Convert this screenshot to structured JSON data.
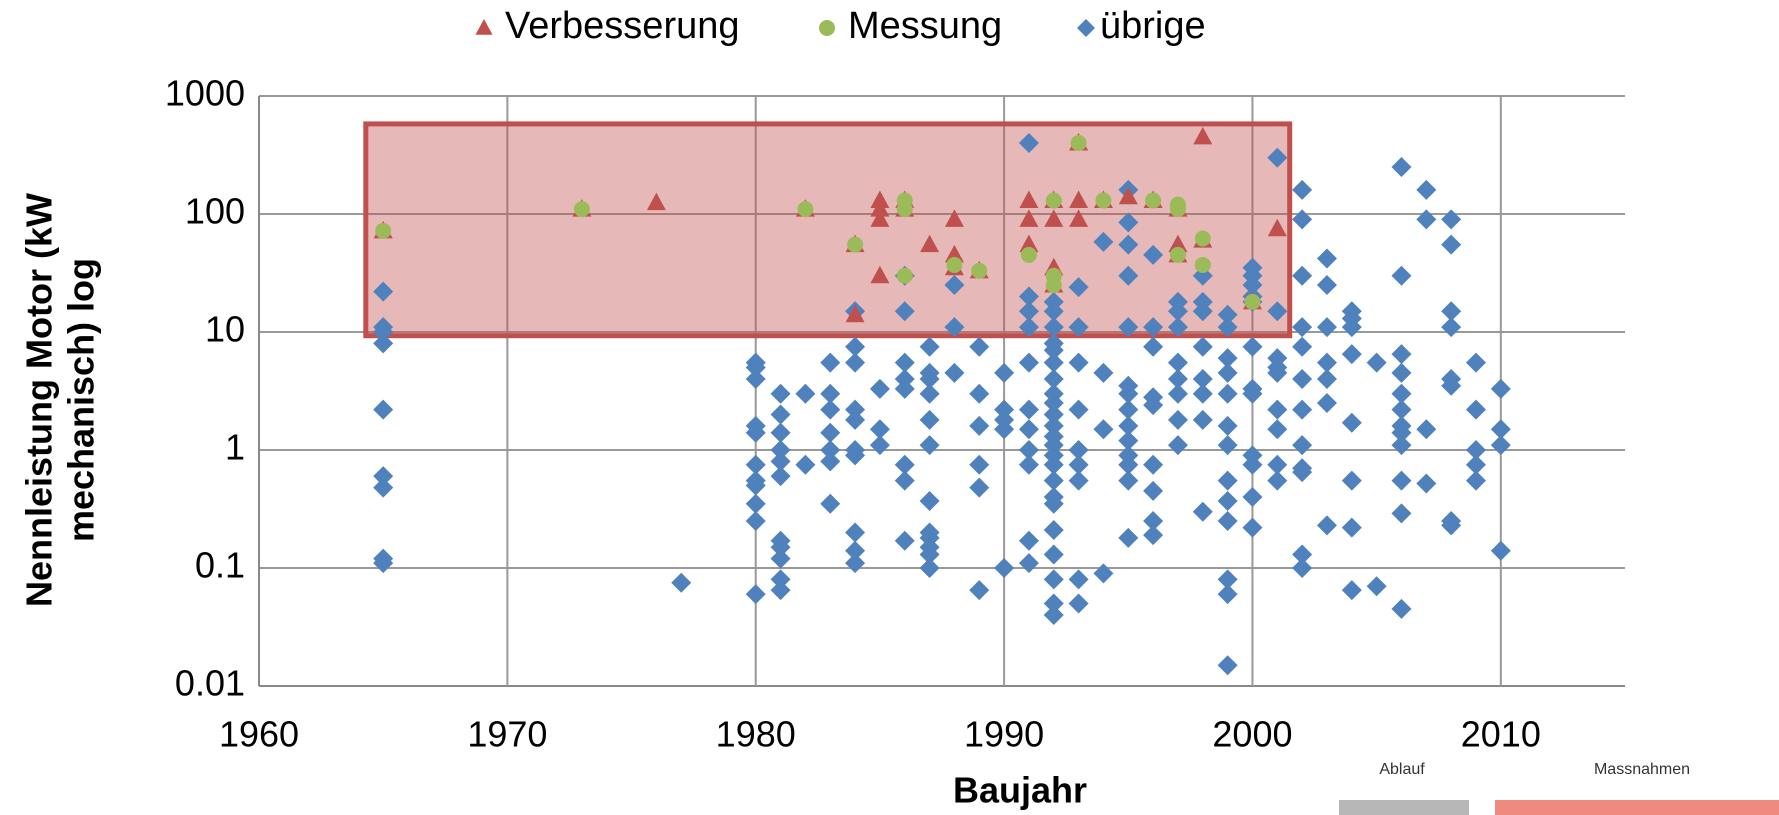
{
  "chart_data": {
    "type": "scatter",
    "x_label": "Baujahr",
    "y_label_lines": [
      "Nennleistung Motor (kW",
      "mechanisch) log"
    ],
    "log_y": true,
    "grid": true,
    "legend": "top",
    "xlim": [
      1960,
      2015
    ],
    "xticks": [
      1960,
      1970,
      1980,
      1990,
      2000,
      2010
    ],
    "ylim": [
      0.01,
      1000
    ],
    "yticks": [
      0.01,
      0.1,
      1,
      10,
      100,
      1000
    ],
    "shaded_region": {
      "x": [
        1964.3,
        2001.5
      ],
      "y": [
        9.3,
        580
      ],
      "color": "#c0504d"
    },
    "series": [
      {
        "name": "Verbesserung",
        "color": "#c0504d",
        "marker": "triangle",
        "x": [
          1965,
          1973,
          1976,
          1982,
          1984,
          1984,
          1985,
          1985,
          1985,
          1985,
          1986,
          1986,
          1987,
          1988,
          1988,
          1988,
          1989,
          1991,
          1991,
          1991,
          1992,
          1992,
          1992,
          1992,
          1993,
          1993,
          1993,
          1994,
          1995,
          1996,
          1997,
          1997,
          1997,
          1998,
          1998,
          2000,
          2001
        ],
        "values": [
          72,
          110,
          125,
          110,
          55,
          14,
          130,
          110,
          90,
          30,
          130,
          110,
          55,
          90,
          45,
          35,
          33,
          130,
          90,
          55,
          130,
          90,
          35,
          25,
          130,
          90,
          400,
          130,
          140,
          130,
          110,
          55,
          45,
          450,
          60,
          18,
          75
        ]
      },
      {
        "name": "Messung",
        "color": "#9bbb59",
        "marker": "circle",
        "x": [
          1965,
          1973,
          1982,
          1984,
          1986,
          1986,
          1986,
          1988,
          1989,
          1991,
          1992,
          1992,
          1992,
          1993,
          1994,
          1996,
          1997,
          1997,
          1997,
          1998,
          1998,
          2000
        ],
        "values": [
          72,
          110,
          110,
          55,
          130,
          110,
          30,
          37,
          33,
          45,
          130,
          30,
          25,
          400,
          130,
          130,
          120,
          110,
          45,
          62,
          37,
          18
        ]
      },
      {
        "name": "übrige",
        "color": "#4f81bd",
        "marker": "diamond",
        "x": [
          1965,
          1965,
          1965,
          1965,
          1965,
          1965,
          1965,
          1965,
          1965,
          1977,
          1980,
          1980,
          1980,
          1980,
          1980,
          1980,
          1980,
          1980,
          1980,
          1980,
          1980,
          1981,
          1981,
          1981,
          1981,
          1981,
          1981,
          1981,
          1981,
          1981,
          1981,
          1981,
          1982,
          1982,
          1983,
          1983,
          1983,
          1983,
          1983,
          1983,
          1983,
          1984,
          1984,
          1984,
          1984,
          1984,
          1984,
          1984,
          1984,
          1984,
          1984,
          1985,
          1985,
          1985,
          1986,
          1986,
          1986,
          1986,
          1986,
          1986,
          1986,
          1986,
          1987,
          1987,
          1987,
          1987,
          1987,
          1987,
          1987,
          1987,
          1987,
          1987,
          1987,
          1987,
          1988,
          1988,
          1988,
          1989,
          1989,
          1989,
          1989,
          1989,
          1989,
          1990,
          1990,
          1990,
          1990,
          1990,
          1991,
          1991,
          1991,
          1991,
          1991,
          1991,
          1991,
          1991,
          1991,
          1991,
          1991,
          1992,
          1992,
          1992,
          1992,
          1992,
          1992,
          1992,
          1992,
          1992,
          1992,
          1992,
          1992,
          1992,
          1992,
          1992,
          1992,
          1992,
          1992,
          1992,
          1992,
          1992,
          1992,
          1992,
          1993,
          1993,
          1993,
          1993,
          1993,
          1993,
          1993,
          1993,
          1993,
          1994,
          1994,
          1994,
          1994,
          1995,
          1995,
          1995,
          1995,
          1995,
          1995,
          1995,
          1995,
          1995,
          1995,
          1995,
          1995,
          1995,
          1995,
          1996,
          1996,
          1996,
          1996,
          1996,
          1996,
          1996,
          1996,
          1996,
          1997,
          1997,
          1997,
          1997,
          1997,
          1997,
          1997,
          1997,
          1998,
          1998,
          1998,
          1998,
          1998,
          1998,
          1998,
          1998,
          1999,
          1999,
          1999,
          1999,
          1999,
          1999,
          1999,
          1999,
          1999,
          1999,
          1999,
          1999,
          1999,
          2000,
          2000,
          2000,
          2000,
          2000,
          2000,
          2000,
          2000,
          2000,
          2000,
          2000,
          2000,
          2001,
          2001,
          2001,
          2001,
          2001,
          2001,
          2001,
          2001,
          2001,
          2002,
          2002,
          2002,
          2002,
          2002,
          2002,
          2002,
          2002,
          2002,
          2002,
          2002,
          2002,
          2003,
          2003,
          2003,
          2003,
          2003,
          2003,
          2003,
          2004,
          2004,
          2004,
          2004,
          2004,
          2004,
          2004,
          2004,
          2005,
          2005,
          2006,
          2006,
          2006,
          2006,
          2006,
          2006,
          2006,
          2006,
          2006,
          2006,
          2006,
          2006,
          2007,
          2007,
          2007,
          2007,
          2008,
          2008,
          2008,
          2008,
          2008,
          2008,
          2008,
          2008,
          2009,
          2009,
          2009,
          2009,
          2009,
          2010,
          2010,
          2010,
          2010
        ],
        "values": [
          22,
          11,
          10,
          8,
          2.2,
          0.6,
          0.48,
          0.12,
          0.11,
          0.075,
          5.5,
          5,
          4,
          1.6,
          1.4,
          0.75,
          0.55,
          0.5,
          0.35,
          0.25,
          0.06,
          3,
          2,
          1.4,
          1,
          0.8,
          0.6,
          0.17,
          0.15,
          0.12,
          0.08,
          0.065,
          3,
          0.75,
          5.5,
          3,
          2.2,
          1.4,
          1,
          0.8,
          0.35,
          15,
          7.5,
          5.5,
          2.2,
          1.8,
          1,
          0.9,
          0.2,
          0.14,
          0.11,
          3.3,
          1.5,
          1.1,
          30,
          15,
          5.5,
          4,
          3.3,
          0.75,
          0.55,
          0.17,
          7.5,
          4.5,
          4,
          3,
          1.8,
          1.1,
          0.37,
          0.2,
          0.18,
          0.15,
          0.13,
          0.1,
          25,
          11,
          4.5,
          7.5,
          3,
          1.6,
          0.75,
          0.48,
          0.065,
          4.5,
          2.2,
          1.8,
          1.5,
          0.1,
          400,
          20,
          15,
          11,
          5.5,
          2.2,
          1.5,
          1,
          0.75,
          0.17,
          0.11,
          18,
          15,
          11,
          8,
          7,
          5.5,
          4,
          3,
          2.5,
          2,
          1.6,
          1.3,
          1.1,
          0.9,
          0.75,
          0.55,
          0.4,
          0.35,
          0.21,
          0.13,
          0.08,
          0.05,
          0.04,
          24,
          11,
          5.5,
          2.2,
          1,
          0.75,
          0.55,
          0.08,
          0.05,
          58,
          4.5,
          1.5,
          0.09,
          160,
          85,
          55,
          30,
          11,
          3.5,
          3,
          2.2,
          1.6,
          1.2,
          0.9,
          0.75,
          0.55,
          0.18,
          45,
          11,
          7.5,
          2.8,
          2.4,
          0.75,
          0.45,
          0.25,
          0.19,
          18,
          15,
          11,
          5.5,
          4,
          3,
          1.8,
          1.1,
          30,
          18,
          15,
          7.5,
          4,
          3,
          1.8,
          0.3,
          14,
          11,
          6,
          4.5,
          3,
          1.6,
          1.1,
          0.55,
          0.37,
          0.25,
          0.08,
          0.06,
          0.015,
          35,
          30,
          25,
          20,
          18,
          7.5,
          3.3,
          3,
          0.9,
          0.75,
          0.4,
          0.22,
          300,
          15,
          6,
          5,
          4.5,
          2.2,
          1.5,
          0.75,
          0.55,
          160,
          90,
          30,
          11,
          7.5,
          4,
          2.2,
          1.1,
          0.7,
          0.65,
          0.13,
          0.1,
          42,
          25,
          11,
          5.5,
          4,
          2.5,
          0.23,
          15,
          13,
          11,
          6.5,
          1.7,
          0.55,
          0.22,
          0.065,
          5.5,
          0.07,
          250,
          30,
          6.5,
          4.5,
          3,
          2.2,
          1.6,
          1.4,
          1.1,
          0.55,
          0.29,
          0.045,
          160,
          90,
          1.5,
          0.52,
          90,
          55,
          15,
          11,
          4,
          3.5,
          0.25,
          0.23,
          5.5,
          2.2,
          1,
          0.75,
          0.55,
          3.3,
          1.5,
          1.1,
          0.14
        ]
      }
    ]
  },
  "overlay": {
    "labels": [
      "Ablauf",
      "Massnahmen"
    ]
  }
}
